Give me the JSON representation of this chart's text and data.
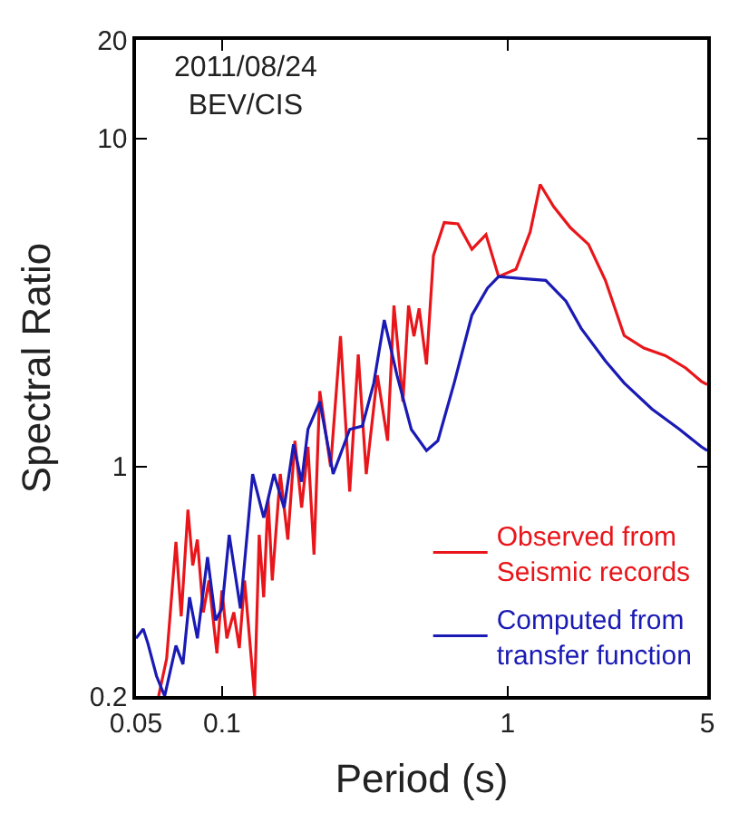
{
  "chart_data": {
    "type": "line",
    "xlabel": "Period (s)",
    "ylabel": "Spectral Ratio",
    "log": "xy",
    "xlim": [
      0.05,
      5
    ],
    "xticks": [
      0.05,
      0.1,
      1,
      5
    ],
    "ylim": [
      0.2,
      20
    ],
    "yticks": [
      0.2,
      1,
      10,
      20
    ],
    "legend": "bottom right",
    "marker": "none",
    "line_style": "solid",
    "annotations": [
      "2011/08/24\nBEV/CIS"
    ],
    "series": [
      {
        "name": "Observed from\nSeismic records",
        "color": "#e8161b",
        "x": [
          0.06,
          0.064,
          0.069,
          0.072,
          0.076,
          0.079,
          0.082,
          0.086,
          0.09,
          0.096,
          0.1,
          0.104,
          0.11,
          0.115,
          0.12,
          0.13,
          0.135,
          0.14,
          0.145,
          0.15,
          0.16,
          0.17,
          0.18,
          0.19,
          0.2,
          0.21,
          0.22,
          0.24,
          0.26,
          0.28,
          0.3,
          0.32,
          0.35,
          0.38,
          0.4,
          0.43,
          0.45,
          0.47,
          0.49,
          0.52,
          0.55,
          0.6,
          0.67,
          0.75,
          0.84,
          0.93,
          1.07,
          1.2,
          1.3,
          1.45,
          1.66,
          1.92,
          2.2,
          2.56,
          3.0,
          3.57,
          4.2,
          4.77,
          5.0
        ],
        "values": [
          0.2,
          0.26,
          0.59,
          0.35,
          0.74,
          0.5,
          0.6,
          0.36,
          0.45,
          0.27,
          0.42,
          0.3,
          0.36,
          0.28,
          0.45,
          0.2,
          0.62,
          0.4,
          0.8,
          0.45,
          0.95,
          0.6,
          1.2,
          0.75,
          1.15,
          0.54,
          1.7,
          1.0,
          2.5,
          0.84,
          2.2,
          0.95,
          1.9,
          1.2,
          3.1,
          1.58,
          3.1,
          2.5,
          3.04,
          2.05,
          4.4,
          5.55,
          5.5,
          4.6,
          5.1,
          3.8,
          4.0,
          5.2,
          7.25,
          6.2,
          5.35,
          4.76,
          3.7,
          2.51,
          2.3,
          2.18,
          2.0,
          1.82,
          1.78
        ]
      },
      {
        "name": "Computed from\ntransfer function",
        "color": "#1a1ab4",
        "x": [
          0.05,
          0.053,
          0.055,
          0.059,
          0.063,
          0.069,
          0.073,
          0.077,
          0.082,
          0.089,
          0.095,
          0.1,
          0.106,
          0.116,
          0.128,
          0.14,
          0.152,
          0.165,
          0.178,
          0.19,
          0.2,
          0.22,
          0.245,
          0.28,
          0.31,
          0.34,
          0.37,
          0.41,
          0.46,
          0.52,
          0.57,
          0.65,
          0.75,
          0.85,
          0.93,
          1.1,
          1.36,
          1.6,
          1.81,
          2.2,
          2.56,
          3.2,
          4.0,
          4.77,
          5.0
        ],
        "values": [
          0.3,
          0.32,
          0.29,
          0.23,
          0.2,
          0.285,
          0.25,
          0.4,
          0.3,
          0.53,
          0.34,
          0.37,
          0.62,
          0.37,
          0.95,
          0.7,
          0.95,
          0.75,
          1.17,
          0.9,
          1.3,
          1.58,
          0.95,
          1.3,
          1.33,
          1.8,
          2.8,
          1.9,
          1.3,
          1.12,
          1.2,
          1.8,
          2.9,
          3.5,
          3.8,
          3.75,
          3.7,
          3.2,
          2.64,
          2.1,
          1.8,
          1.5,
          1.3,
          1.15,
          1.12
        ]
      }
    ]
  }
}
